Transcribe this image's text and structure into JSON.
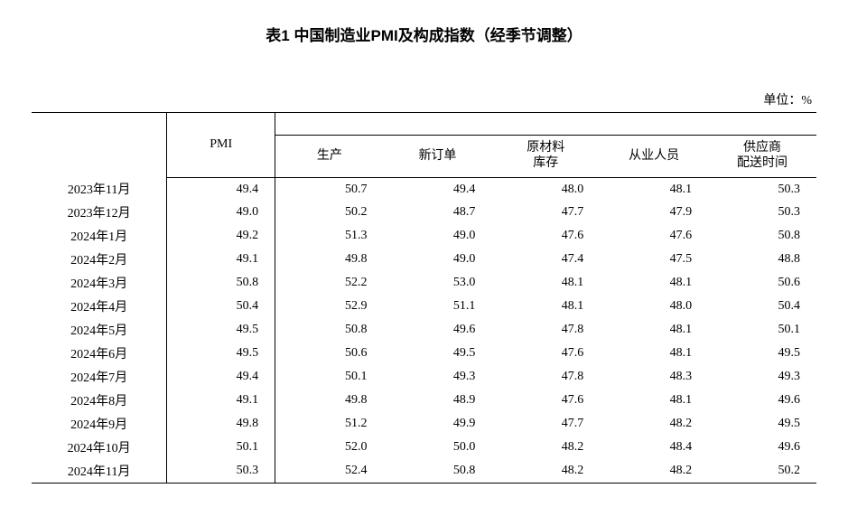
{
  "title": "表1 中国制造业PMI及构成指数（经季节调整）",
  "unit": "单位：%",
  "table": {
    "headers": {
      "pmi": "PMI",
      "production": "生产",
      "new_orders": "新订单",
      "raw_materials_line1": "原材料",
      "raw_materials_line2": "库存",
      "employees": "从业人员",
      "supplier_line1": "供应商",
      "supplier_line2": "配送时间"
    },
    "rows": [
      {
        "month": "2023年11月",
        "pmi": "49.4",
        "production": "50.7",
        "new_orders": "49.4",
        "raw_materials": "48.0",
        "employees": "48.1",
        "supplier": "50.3"
      },
      {
        "month": "2023年12月",
        "pmi": "49.0",
        "production": "50.2",
        "new_orders": "48.7",
        "raw_materials": "47.7",
        "employees": "47.9",
        "supplier": "50.3"
      },
      {
        "month": "2024年1月",
        "pmi": "49.2",
        "production": "51.3",
        "new_orders": "49.0",
        "raw_materials": "47.6",
        "employees": "47.6",
        "supplier": "50.8"
      },
      {
        "month": "2024年2月",
        "pmi": "49.1",
        "production": "49.8",
        "new_orders": "49.0",
        "raw_materials": "47.4",
        "employees": "47.5",
        "supplier": "48.8"
      },
      {
        "month": "2024年3月",
        "pmi": "50.8",
        "production": "52.2",
        "new_orders": "53.0",
        "raw_materials": "48.1",
        "employees": "48.1",
        "supplier": "50.6"
      },
      {
        "month": "2024年4月",
        "pmi": "50.4",
        "production": "52.9",
        "new_orders": "51.1",
        "raw_materials": "48.1",
        "employees": "48.0",
        "supplier": "50.4"
      },
      {
        "month": "2024年5月",
        "pmi": "49.5",
        "production": "50.8",
        "new_orders": "49.6",
        "raw_materials": "47.8",
        "employees": "48.1",
        "supplier": "50.1"
      },
      {
        "month": "2024年6月",
        "pmi": "49.5",
        "production": "50.6",
        "new_orders": "49.5",
        "raw_materials": "47.6",
        "employees": "48.1",
        "supplier": "49.5"
      },
      {
        "month": "2024年7月",
        "pmi": "49.4",
        "production": "50.1",
        "new_orders": "49.3",
        "raw_materials": "47.8",
        "employees": "48.3",
        "supplier": "49.3"
      },
      {
        "month": "2024年8月",
        "pmi": "49.1",
        "production": "49.8",
        "new_orders": "48.9",
        "raw_materials": "47.6",
        "employees": "48.1",
        "supplier": "49.6"
      },
      {
        "month": "2024年9月",
        "pmi": "49.8",
        "production": "51.2",
        "new_orders": "49.9",
        "raw_materials": "47.7",
        "employees": "48.2",
        "supplier": "49.5"
      },
      {
        "month": "2024年10月",
        "pmi": "50.1",
        "production": "52.0",
        "new_orders": "50.0",
        "raw_materials": "48.2",
        "employees": "48.4",
        "supplier": "49.6"
      },
      {
        "month": "2024年11月",
        "pmi": "50.3",
        "production": "52.4",
        "new_orders": "50.8",
        "raw_materials": "48.2",
        "employees": "48.2",
        "supplier": "50.2"
      }
    ]
  }
}
